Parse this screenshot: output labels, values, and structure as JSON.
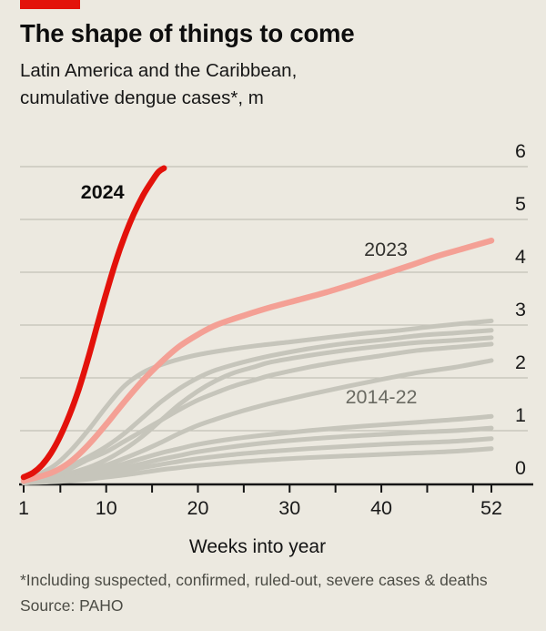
{
  "page": {
    "background": "#ECE9E0"
  },
  "header": {
    "tag_color": "#E3120B",
    "title": "The shape of things to come",
    "subtitle_line1": "Latin America and the Caribbean,",
    "subtitle_line2": "cumulative dengue cases*, m"
  },
  "footer": {
    "footnote": "*Including suspected, confirmed, ruled-out, severe cases & deaths",
    "source": "Source: PAHO"
  },
  "chart_data": {
    "type": "line",
    "title": "Latin America and the Caribbean, cumulative dengue cases, m",
    "xlabel": "Weeks into year",
    "ylabel": "",
    "x_range": [
      1,
      52
    ],
    "y_range": [
      0,
      6
    ],
    "x_tick_labels": [
      1,
      10,
      20,
      30,
      40,
      52
    ],
    "x_minor_ticks": [
      1,
      5,
      10,
      15,
      20,
      25,
      30,
      35,
      40,
      45,
      50,
      52
    ],
    "y_ticks": [
      0,
      1,
      2,
      3,
      4,
      5,
      6
    ],
    "grid": "horizontal",
    "legend": "inline-annotations",
    "colors": {
      "red": "#E3120B",
      "salmon": "#F4A095",
      "gray": "#C6C5BB",
      "gridline": "#C2C1B7",
      "axis": "#151515"
    },
    "annotations": [
      {
        "text": "2024",
        "week": 9.6,
        "value": 5.5,
        "bold": true,
        "color": "#0D0D0D"
      },
      {
        "text": "2023",
        "week": 40.5,
        "value": 4.42,
        "bold": false,
        "color": "#33332F"
      },
      {
        "text": "2014-22",
        "week": 40.0,
        "value": 1.62,
        "bold": false,
        "color": "#6A6A62"
      }
    ],
    "series": [
      {
        "name": "2014-22-1",
        "color_key": "gray",
        "width": 5,
        "points": [
          [
            1,
            0.05
          ],
          [
            4,
            0.3
          ],
          [
            6,
            0.6
          ],
          [
            8,
            1.0
          ],
          [
            10,
            1.45
          ],
          [
            12,
            1.85
          ],
          [
            14,
            2.1
          ],
          [
            16,
            2.25
          ],
          [
            19,
            2.4
          ],
          [
            22,
            2.5
          ],
          [
            26,
            2.6
          ],
          [
            30,
            2.68
          ],
          [
            34,
            2.76
          ],
          [
            38,
            2.84
          ],
          [
            42,
            2.9
          ],
          [
            46,
            2.98
          ],
          [
            52,
            3.08
          ]
        ]
      },
      {
        "name": "2014-22-2",
        "color_key": "gray",
        "width": 5,
        "points": [
          [
            1,
            0.03
          ],
          [
            5,
            0.25
          ],
          [
            8,
            0.5
          ],
          [
            10,
            0.7
          ],
          [
            12,
            0.95
          ],
          [
            14,
            1.25
          ],
          [
            16,
            1.55
          ],
          [
            18,
            1.8
          ],
          [
            20,
            2.0
          ],
          [
            22,
            2.15
          ],
          [
            25,
            2.3
          ],
          [
            28,
            2.42
          ],
          [
            32,
            2.55
          ],
          [
            36,
            2.65
          ],
          [
            40,
            2.72
          ],
          [
            44,
            2.8
          ],
          [
            48,
            2.85
          ],
          [
            52,
            2.9
          ]
        ]
      },
      {
        "name": "2014-22-3",
        "color_key": "gray",
        "width": 5,
        "points": [
          [
            1,
            0.02
          ],
          [
            5,
            0.15
          ],
          [
            8,
            0.3
          ],
          [
            10,
            0.45
          ],
          [
            12,
            0.65
          ],
          [
            14,
            0.9
          ],
          [
            16,
            1.2
          ],
          [
            18,
            1.5
          ],
          [
            20,
            1.75
          ],
          [
            22,
            1.95
          ],
          [
            24,
            2.1
          ],
          [
            26,
            2.2
          ],
          [
            28,
            2.3
          ],
          [
            32,
            2.42
          ],
          [
            36,
            2.52
          ],
          [
            40,
            2.6
          ],
          [
            44,
            2.67
          ],
          [
            48,
            2.71
          ],
          [
            52,
            2.76
          ]
        ]
      },
      {
        "name": "2014-22-4",
        "color_key": "gray",
        "width": 5,
        "points": [
          [
            1,
            0.02
          ],
          [
            5,
            0.2
          ],
          [
            8,
            0.45
          ],
          [
            10,
            0.6
          ],
          [
            12,
            0.8
          ],
          [
            14,
            1.0
          ],
          [
            16,
            1.2
          ],
          [
            18,
            1.4
          ],
          [
            20,
            1.58
          ],
          [
            22,
            1.72
          ],
          [
            24,
            1.85
          ],
          [
            26,
            1.95
          ],
          [
            28,
            2.05
          ],
          [
            32,
            2.2
          ],
          [
            36,
            2.32
          ],
          [
            40,
            2.42
          ],
          [
            44,
            2.52
          ],
          [
            48,
            2.58
          ],
          [
            52,
            2.64
          ]
        ]
      },
      {
        "name": "2014-22-5",
        "color_key": "gray",
        "width": 5,
        "points": [
          [
            1,
            0.02
          ],
          [
            5,
            0.12
          ],
          [
            8,
            0.25
          ],
          [
            10,
            0.35
          ],
          [
            12,
            0.48
          ],
          [
            14,
            0.62
          ],
          [
            16,
            0.78
          ],
          [
            18,
            0.95
          ],
          [
            20,
            1.1
          ],
          [
            22,
            1.22
          ],
          [
            24,
            1.33
          ],
          [
            26,
            1.43
          ],
          [
            28,
            1.52
          ],
          [
            32,
            1.68
          ],
          [
            36,
            1.83
          ],
          [
            40,
            1.97
          ],
          [
            44,
            2.1
          ],
          [
            48,
            2.2
          ],
          [
            52,
            2.33
          ]
        ]
      },
      {
        "name": "2014-22-6",
        "color_key": "gray",
        "width": 5,
        "points": [
          [
            1,
            0.02
          ],
          [
            5,
            0.1
          ],
          [
            8,
            0.2
          ],
          [
            10,
            0.28
          ],
          [
            12,
            0.38
          ],
          [
            14,
            0.48
          ],
          [
            16,
            0.58
          ],
          [
            18,
            0.66
          ],
          [
            20,
            0.74
          ],
          [
            24,
            0.85
          ],
          [
            28,
            0.93
          ],
          [
            32,
            1.0
          ],
          [
            36,
            1.06
          ],
          [
            40,
            1.11
          ],
          [
            44,
            1.16
          ],
          [
            48,
            1.21
          ],
          [
            52,
            1.27
          ]
        ]
      },
      {
        "name": "2014-22-7",
        "color_key": "gray",
        "width": 5,
        "points": [
          [
            1,
            0.01
          ],
          [
            5,
            0.08
          ],
          [
            8,
            0.15
          ],
          [
            10,
            0.22
          ],
          [
            12,
            0.3
          ],
          [
            14,
            0.38
          ],
          [
            16,
            0.46
          ],
          [
            18,
            0.53
          ],
          [
            20,
            0.6
          ],
          [
            24,
            0.7
          ],
          [
            28,
            0.78
          ],
          [
            32,
            0.84
          ],
          [
            36,
            0.89
          ],
          [
            40,
            0.93
          ],
          [
            44,
            0.97
          ],
          [
            48,
            1.0
          ],
          [
            52,
            1.05
          ]
        ]
      },
      {
        "name": "2014-22-8",
        "color_key": "gray",
        "width": 5,
        "points": [
          [
            1,
            0.01
          ],
          [
            5,
            0.06
          ],
          [
            8,
            0.12
          ],
          [
            10,
            0.17
          ],
          [
            12,
            0.23
          ],
          [
            14,
            0.3
          ],
          [
            16,
            0.36
          ],
          [
            18,
            0.42
          ],
          [
            20,
            0.47
          ],
          [
            24,
            0.55
          ],
          [
            28,
            0.61
          ],
          [
            32,
            0.66
          ],
          [
            36,
            0.7
          ],
          [
            40,
            0.74
          ],
          [
            44,
            0.77
          ],
          [
            48,
            0.8
          ],
          [
            52,
            0.85
          ]
        ]
      },
      {
        "name": "2014-22-9",
        "color_key": "gray",
        "width": 5,
        "points": [
          [
            1,
            0.01
          ],
          [
            5,
            0.04
          ],
          [
            8,
            0.08
          ],
          [
            10,
            0.12
          ],
          [
            12,
            0.16
          ],
          [
            14,
            0.21
          ],
          [
            16,
            0.26
          ],
          [
            18,
            0.3
          ],
          [
            20,
            0.34
          ],
          [
            24,
            0.4
          ],
          [
            28,
            0.45
          ],
          [
            32,
            0.49
          ],
          [
            36,
            0.52
          ],
          [
            40,
            0.55
          ],
          [
            44,
            0.58
          ],
          [
            48,
            0.61
          ],
          [
            52,
            0.66
          ]
        ]
      },
      {
        "name": "2023",
        "color_key": "salmon",
        "width": 6.5,
        "points": [
          [
            1,
            0.05
          ],
          [
            4,
            0.2
          ],
          [
            6,
            0.4
          ],
          [
            8,
            0.72
          ],
          [
            10,
            1.12
          ],
          [
            12,
            1.55
          ],
          [
            14,
            1.95
          ],
          [
            16,
            2.3
          ],
          [
            18,
            2.6
          ],
          [
            20,
            2.82
          ],
          [
            22,
            3.0
          ],
          [
            25,
            3.18
          ],
          [
            28,
            3.34
          ],
          [
            31,
            3.48
          ],
          [
            34,
            3.62
          ],
          [
            37,
            3.78
          ],
          [
            40,
            3.95
          ],
          [
            43,
            4.12
          ],
          [
            46,
            4.3
          ],
          [
            49,
            4.45
          ],
          [
            52,
            4.6
          ]
        ]
      },
      {
        "name": "2024",
        "color_key": "red",
        "width": 6.5,
        "points": [
          [
            1,
            0.12
          ],
          [
            2,
            0.2
          ],
          [
            3,
            0.35
          ],
          [
            4,
            0.58
          ],
          [
            5,
            0.9
          ],
          [
            6,
            1.3
          ],
          [
            7,
            1.78
          ],
          [
            8,
            2.35
          ],
          [
            9,
            2.98
          ],
          [
            10,
            3.6
          ],
          [
            11,
            4.18
          ],
          [
            12,
            4.68
          ],
          [
            13,
            5.1
          ],
          [
            14,
            5.45
          ],
          [
            15,
            5.73
          ],
          [
            15.7,
            5.9
          ],
          [
            16.3,
            5.97
          ]
        ]
      }
    ]
  }
}
